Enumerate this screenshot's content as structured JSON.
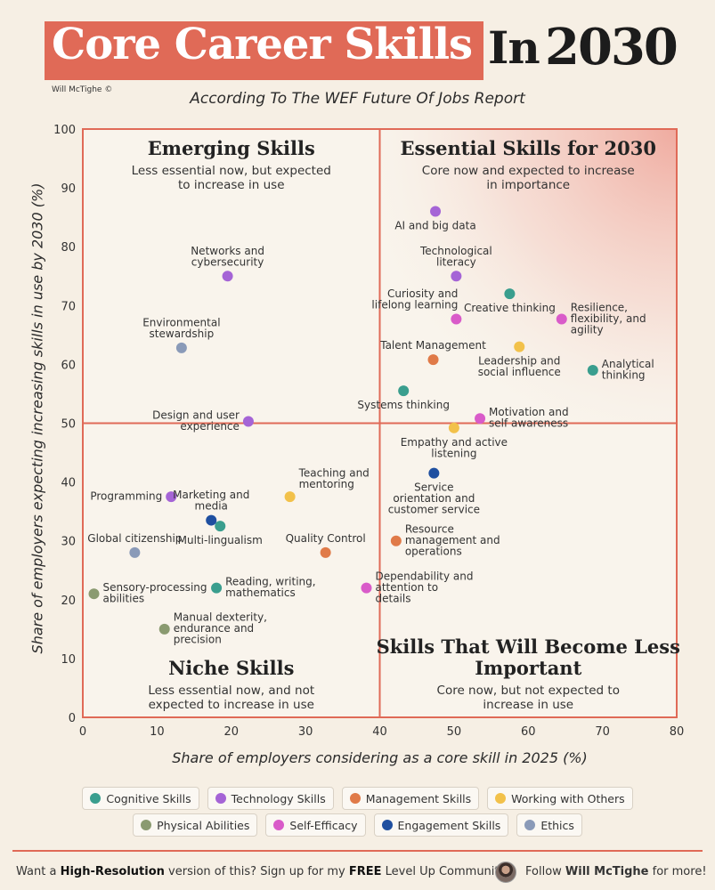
{
  "header": {
    "title_main": "Core Career Skills",
    "title_in": "In",
    "title_year": "2030",
    "author": "Will McTighe ©",
    "subtitle": "According To The WEF Future Of Jobs Report"
  },
  "colors": {
    "title_bg": "#e06a57",
    "quadrant_line": "#e06a57",
    "Cognitive Skills": "#3a9e8e",
    "Technology Skills": "#a564d6",
    "Management Skills": "#e07a48",
    "Working with Others": "#f2c14a",
    "Physical Abilities": "#8a9a70",
    "Self-Efficacy": "#d95bc9",
    "Engagement Skills": "#1f4fa0",
    "Ethics": "#8a9ab8"
  },
  "chart_data": {
    "type": "scatter",
    "xlabel": "Share of employers considering as a core skill in 2025 (%)",
    "ylabel": "Share of employers expecting increasing skills in use by 2030 (%)",
    "xlim": [
      0,
      80
    ],
    "ylim": [
      0,
      100
    ],
    "xticks": [
      "0",
      "10",
      "20",
      "30",
      "40",
      "50",
      "60",
      "70",
      "80"
    ],
    "yticks": [
      "0",
      "10",
      "20",
      "30",
      "40",
      "50",
      "60",
      "70",
      "80",
      "90",
      "100"
    ],
    "quadrant_split": {
      "x": 40,
      "y": 50
    },
    "quadrants": [
      {
        "id": "tl",
        "title": "Emerging Skills",
        "desc": "Less essential now, but expected to increase in use"
      },
      {
        "id": "tr",
        "title": "Essential Skills for 2030",
        "desc": "Core now and expected to increase in importance"
      },
      {
        "id": "bl",
        "title": "Niche Skills",
        "desc": "Less essential now, and not expected to increase in use"
      },
      {
        "id": "br",
        "title": "Skills That Will Become Less Important",
        "desc": "Core now, but not expected to increase in use"
      }
    ],
    "points": [
      {
        "label": "AI and big data",
        "category": "Technology Skills",
        "x": 47.5,
        "y": 86,
        "pos": "below"
      },
      {
        "label": "Technological literacy",
        "category": "Technology Skills",
        "x": 50.3,
        "y": 75,
        "pos": "above"
      },
      {
        "label": "Networks and cybersecurity",
        "category": "Technology Skills",
        "x": 19.5,
        "y": 75,
        "pos": "above"
      },
      {
        "label": "Design and user experience",
        "category": "Technology Skills",
        "x": 22.3,
        "y": 50.3,
        "pos": "left"
      },
      {
        "label": "Programming",
        "category": "Technology Skills",
        "x": 11.9,
        "y": 37.5,
        "pos": "left"
      },
      {
        "label": "Curiosity and lifelong learning",
        "category": "Self-Efficacy",
        "x": 50.3,
        "y": 67.7,
        "pos": "aboveleft"
      },
      {
        "label": "Resilience, flexibility, and agility",
        "category": "Self-Efficacy",
        "x": 64.5,
        "y": 67.7,
        "pos": "right"
      },
      {
        "label": "Motivation and self awareness",
        "category": "Self-Efficacy",
        "x": 53.5,
        "y": 50.8,
        "pos": "right"
      },
      {
        "label": "Dependability and attention to details",
        "category": "Self-Efficacy",
        "x": 38.2,
        "y": 22,
        "pos": "right"
      },
      {
        "label": "Creative thinking",
        "category": "Cognitive Skills",
        "x": 57.5,
        "y": 72,
        "pos": "below"
      },
      {
        "label": "Analytical thinking",
        "category": "Cognitive Skills",
        "x": 68.7,
        "y": 59,
        "pos": "right"
      },
      {
        "label": "Systems thinking",
        "category": "Cognitive Skills",
        "x": 43.2,
        "y": 55.5,
        "pos": "below"
      },
      {
        "label": "Multi-lingualism",
        "category": "Cognitive Skills",
        "x": 18.5,
        "y": 32.5,
        "pos": "below"
      },
      {
        "label": "Reading, writing, mathematics",
        "category": "Cognitive Skills",
        "x": 18,
        "y": 22,
        "pos": "right"
      },
      {
        "label": "Leadership and social influence",
        "category": "Working with Others",
        "x": 58.8,
        "y": 63,
        "pos": "below"
      },
      {
        "label": "Empathy and active listening",
        "category": "Working with Others",
        "x": 50,
        "y": 49.2,
        "pos": "below"
      },
      {
        "label": "Teaching and mentoring",
        "category": "Working with Others",
        "x": 27.9,
        "y": 37.5,
        "pos": "aboveright"
      },
      {
        "label": "Talent Management",
        "category": "Management Skills",
        "x": 47.2,
        "y": 60.8,
        "pos": "above"
      },
      {
        "label": "Resource management and operations",
        "category": "Management Skills",
        "x": 42.2,
        "y": 30,
        "pos": "right"
      },
      {
        "label": "Quality Control",
        "category": "Management Skills",
        "x": 32.7,
        "y": 28,
        "pos": "above"
      },
      {
        "label": "Service orientation and customer service",
        "category": "Engagement Skills",
        "x": 47.3,
        "y": 41.5,
        "pos": "below"
      },
      {
        "label": "Marketing and media",
        "category": "Engagement Skills",
        "x": 17.3,
        "y": 33.5,
        "pos": "above"
      },
      {
        "label": "Environmental stewardship",
        "category": "Ethics",
        "x": 13.3,
        "y": 62.8,
        "pos": "above"
      },
      {
        "label": "Global citizenship",
        "category": "Ethics",
        "x": 7,
        "y": 28,
        "pos": "above"
      },
      {
        "label": "Sensory-processing abilities",
        "category": "Physical Abilities",
        "x": 1.5,
        "y": 21,
        "pos": "right"
      },
      {
        "label": "Manual dexterity, endurance and precision",
        "category": "Physical Abilities",
        "x": 11,
        "y": 15,
        "pos": "right"
      }
    ]
  },
  "legend": {
    "row1": [
      "Cognitive Skills",
      "Technology Skills",
      "Management Skills",
      "Working with Others"
    ],
    "row2": [
      "Physical Abilities",
      "Self-Efficacy",
      "Engagement Skills",
      "Ethics"
    ]
  },
  "footer": {
    "left_1": "Want a ",
    "left_2": "High-Resolution",
    "left_3": " version of this? Sign up for my ",
    "left_4": "FREE",
    "left_5": " Level Up Community",
    "right_1": "Follow ",
    "right_2": "Will McTighe",
    "right_3": " for more!"
  }
}
